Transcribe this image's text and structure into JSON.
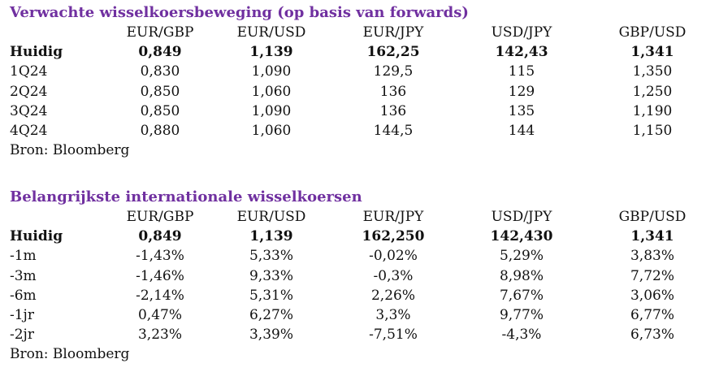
{
  "forwards": {
    "title": "Verwachte wisselkoersbeweging (op basis van forwards)",
    "headers": [
      "EUR/GBP",
      "EUR/USD",
      "EUR/JPY",
      "USD/JPY",
      "GBP/USD"
    ],
    "rows": [
      {
        "label": "Huidig",
        "values": [
          "0,849",
          "1,139",
          "162,25",
          "142,43",
          "1,341"
        ]
      },
      {
        "label": "1Q24",
        "values": [
          "0,830",
          "1,090",
          "129,5",
          "115",
          "1,350"
        ]
      },
      {
        "label": "2Q24",
        "values": [
          "0,850",
          "1,060",
          "136",
          "129",
          "1,250"
        ]
      },
      {
        "label": "3Q24",
        "values": [
          "0,850",
          "1,090",
          "136",
          "135",
          "1,190"
        ]
      },
      {
        "label": "4Q24",
        "values": [
          "0,880",
          "1,060",
          "144,5",
          "144",
          "1,150"
        ]
      }
    ],
    "source": "Bron: Bloomberg"
  },
  "rates": {
    "title": "Belangrijkste internationale wisselkoersen",
    "headers": [
      "EUR/GBP",
      "EUR/USD",
      "EUR/JPY",
      "USD/JPY",
      "GBP/USD"
    ],
    "rows": [
      {
        "label": "Huidig",
        "values": [
          "0,849",
          "1,139",
          "162,250",
          "142,430",
          "1,341"
        ]
      },
      {
        "label": "-1m",
        "values": [
          "-1,43%",
          "5,33%",
          "-0,02%",
          "5,29%",
          "3,83%"
        ]
      },
      {
        "label": "-3m",
        "values": [
          "-1,46%",
          "9,33%",
          "-0,3%",
          "8,98%",
          "7,72%"
        ]
      },
      {
        "label": "-6m",
        "values": [
          "-2,14%",
          "5,31%",
          "2,26%",
          "7,67%",
          "3,06%"
        ]
      },
      {
        "label": "-1jr",
        "values": [
          "0,47%",
          "6,27%",
          "3,3%",
          "9,77%",
          "6,77%"
        ]
      },
      {
        "label": "-2jr",
        "values": [
          "3,23%",
          "3,39%",
          "-7,51%",
          "-4,3%",
          "6,73%"
        ]
      }
    ],
    "source": "Bron: Bloomberg"
  }
}
